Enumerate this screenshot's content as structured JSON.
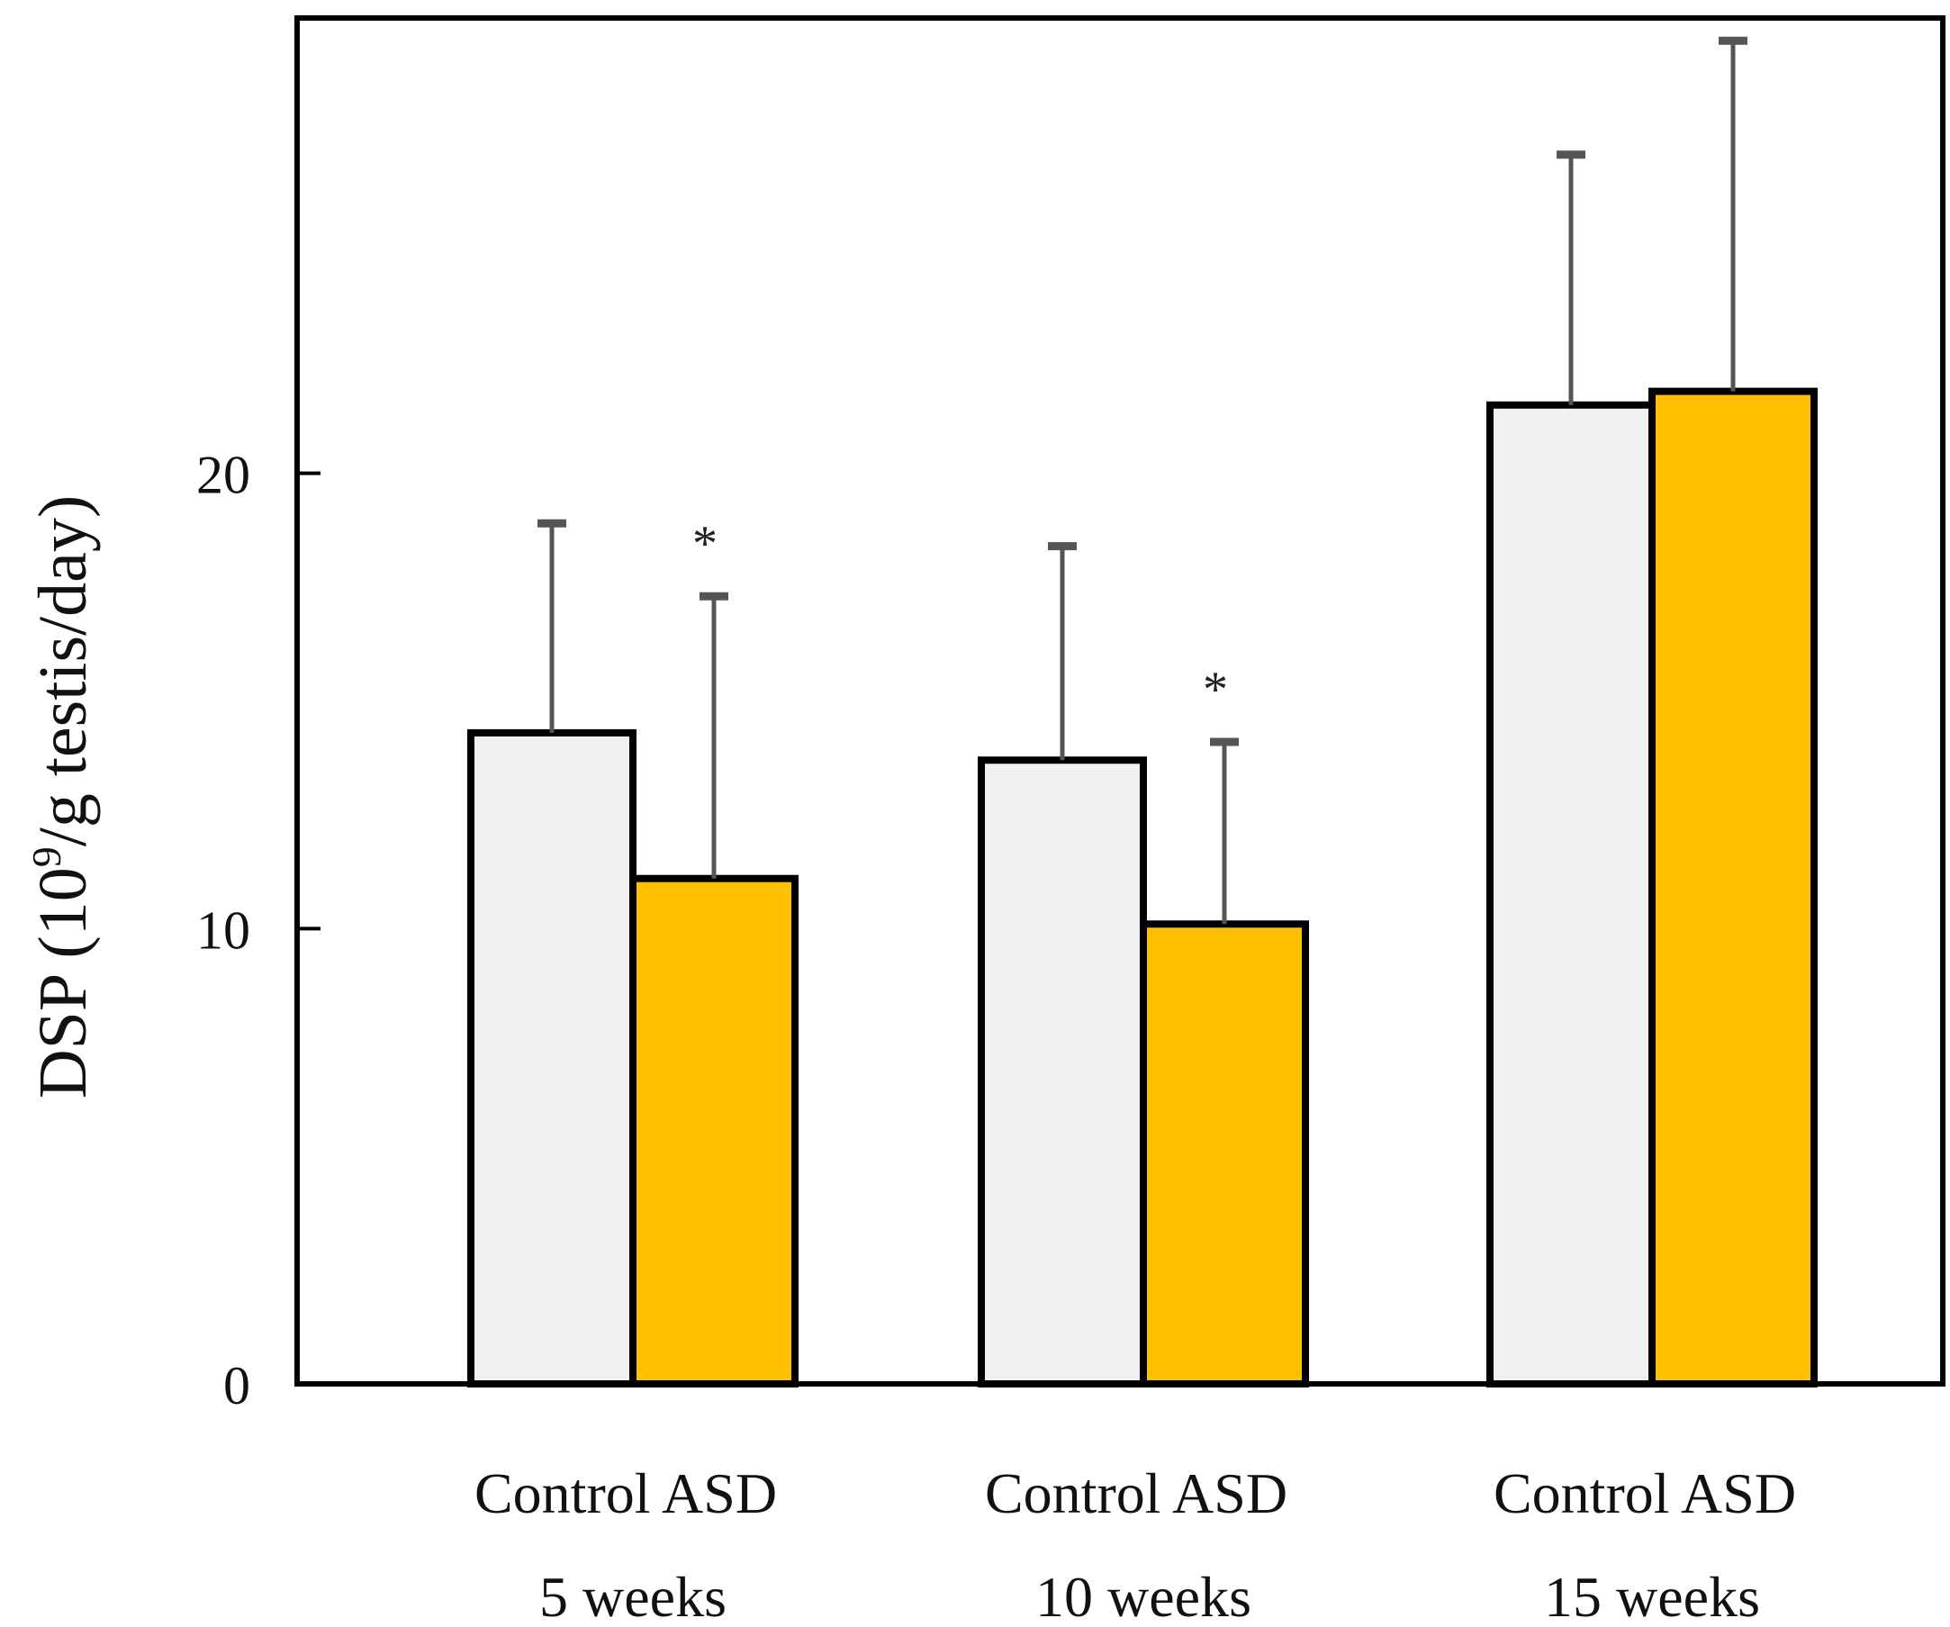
{
  "chart_data": {
    "type": "bar",
    "title": "",
    "ylabel": {
      "prefix": "DSP (10",
      "superscript": "9",
      "suffix": "/g testis/day)"
    },
    "xlabel": "",
    "ylim": [
      0,
      30
    ],
    "yticks": [
      0,
      10,
      20
    ],
    "ytick_labels": [
      "0",
      "10",
      "20"
    ],
    "grid": false,
    "legend": "none",
    "groups": [
      "5 weeks",
      "10 weeks",
      "15 weeks"
    ],
    "series": [
      {
        "name": "Control",
        "color": "#f0f0f0",
        "values": [
          14.3,
          13.7,
          21.5
        ],
        "errors": [
          4.6,
          4.7,
          5.5
        ],
        "significance": [
          "",
          "",
          ""
        ]
      },
      {
        "name": "ASD",
        "color": "#ffc000",
        "values": [
          11.1,
          10.1,
          21.8
        ],
        "errors": [
          6.2,
          4.0,
          7.7
        ],
        "significance": [
          "*",
          "*",
          ""
        ]
      }
    ],
    "bar_labels": [
      [
        "Control",
        "ASD"
      ],
      [
        "Control",
        "ASD"
      ],
      [
        "Control",
        "ASD"
      ]
    ]
  }
}
